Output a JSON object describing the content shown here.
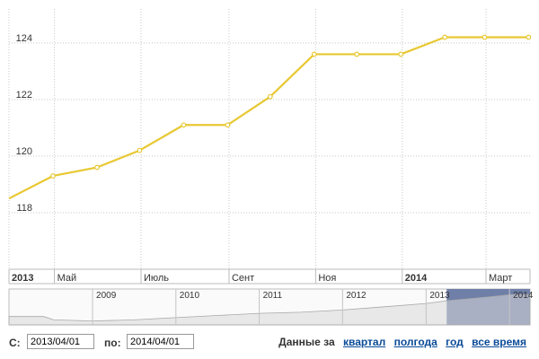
{
  "chart_data": {
    "type": "line",
    "color": "#e8c832",
    "ylim": [
      116,
      125.2
    ],
    "yticks": [
      118,
      120,
      122,
      124
    ],
    "x_range": [
      "2013-03-30",
      "2014-04-01"
    ],
    "x": [
      "2013-03-30",
      "2013-04-30",
      "2013-05-31",
      "2013-06-30",
      "2013-07-31",
      "2013-08-31",
      "2013-09-30",
      "2013-10-31",
      "2013-11-30",
      "2013-12-31",
      "2014-01-31",
      "2014-02-28",
      "2014-03-31",
      "2014-04-01"
    ],
    "values": [
      118.5,
      119.3,
      119.6,
      120.2,
      121.1,
      121.1,
      122.1,
      123.6,
      123.6,
      123.6,
      124.2,
      124.2,
      124.2,
      124.2
    ],
    "marker_count": 12,
    "xticks": [
      {
        "date": "2013-03-30",
        "label": "2013",
        "bold": true
      },
      {
        "date": "2013-05-01",
        "label": "Май",
        "bold": false
      },
      {
        "date": "2013-07-01",
        "label": "Июль",
        "bold": false
      },
      {
        "date": "2013-09-01",
        "label": "Сент",
        "bold": false
      },
      {
        "date": "2013-11-01",
        "label": "Ноя",
        "bold": false
      },
      {
        "date": "2014-01-01",
        "label": "2014",
        "bold": true
      },
      {
        "date": "2014-03-01",
        "label": "Март",
        "bold": false
      }
    ],
    "grid": true,
    "legend": "none"
  },
  "navigator": {
    "years": [
      "2009",
      "2010",
      "2011",
      "2012",
      "2013",
      "2014"
    ],
    "x_range": [
      "2008-01-01",
      "2014-04-01"
    ],
    "selection": [
      "2013-04-01",
      "2014-04-01"
    ],
    "selection_color": "#6f7fa8",
    "area_color": "#d8d8d8",
    "series": [
      {
        "date": "2008-01-01",
        "value": 104
      },
      {
        "date": "2008-06-01",
        "value": 104
      },
      {
        "date": "2008-07-15",
        "value": 101
      },
      {
        "date": "2009-01-01",
        "value": 100
      },
      {
        "date": "2009-07-01",
        "value": 101
      },
      {
        "date": "2010-01-01",
        "value": 103
      },
      {
        "date": "2010-07-01",
        "value": 105
      },
      {
        "date": "2011-01-01",
        "value": 107
      },
      {
        "date": "2011-07-01",
        "value": 108
      },
      {
        "date": "2012-01-01",
        "value": 110
      },
      {
        "date": "2012-07-01",
        "value": 113
      },
      {
        "date": "2013-01-01",
        "value": 116
      },
      {
        "date": "2013-04-01",
        "value": 118.5
      },
      {
        "date": "2013-10-01",
        "value": 122
      },
      {
        "date": "2014-01-01",
        "value": 124
      },
      {
        "date": "2014-04-01",
        "value": 124.2
      }
    ]
  },
  "controls": {
    "from_label": "С:",
    "from_value": "2013/04/01",
    "to_label": "по:",
    "to_value": "2014/04/01",
    "period_label": "Данные за",
    "periods": [
      "квартал",
      "полгода",
      "год",
      "все время"
    ]
  }
}
